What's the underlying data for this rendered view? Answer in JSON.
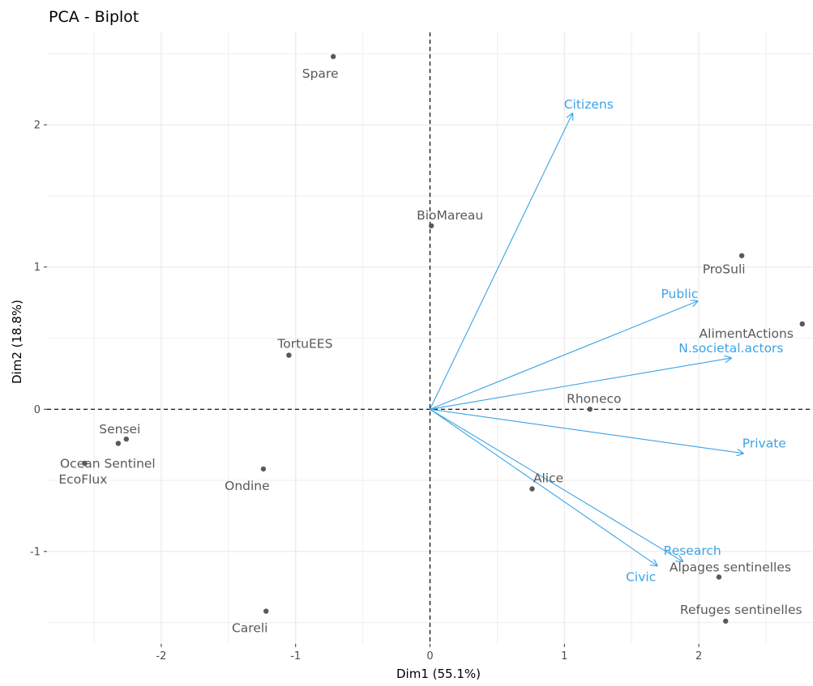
{
  "chart_data": {
    "type": "scatter",
    "title": "PCA - Biplot",
    "xlabel": "Dim1 (55.1%)",
    "ylabel": "Dim2 (18.8%)",
    "xlim": [
      -2.85,
      2.85
    ],
    "ylim": [
      -1.65,
      2.65
    ],
    "x_ticks": [
      -2,
      -1,
      0,
      1,
      2
    ],
    "y_ticks": [
      -1,
      0,
      1,
      2
    ],
    "grid": true,
    "reference_lines": {
      "x": 0,
      "y": 0,
      "style": "dashed"
    },
    "individuals": [
      {
        "name": "Spare",
        "x": -0.72,
        "y": 2.48
      },
      {
        "name": "BioMareau",
        "x": 0.01,
        "y": 1.29
      },
      {
        "name": "ProSuli",
        "x": 2.32,
        "y": 1.08
      },
      {
        "name": "AlimentActions",
        "x": 2.77,
        "y": 0.6
      },
      {
        "name": "TortuEES",
        "x": -1.05,
        "y": 0.38
      },
      {
        "name": "Rhoneco",
        "x": 1.19,
        "y": 0.0
      },
      {
        "name": "Sensei",
        "x": -2.26,
        "y": -0.21
      },
      {
        "name": "Ocean Sentinel",
        "x": -2.32,
        "y": -0.24
      },
      {
        "name": "EcoFlux",
        "x": -2.57,
        "y": -0.38
      },
      {
        "name": "Ondine",
        "x": -1.24,
        "y": -0.42
      },
      {
        "name": "Alice",
        "x": 0.76,
        "y": -0.56
      },
      {
        "name": "Alpages sentinelles",
        "x": 2.15,
        "y": -1.18
      },
      {
        "name": "Careli",
        "x": -1.22,
        "y": -1.42
      },
      {
        "name": "Refuges sentinelles",
        "x": 2.2,
        "y": -1.49
      }
    ],
    "variables": [
      {
        "name": "Citizens",
        "x": 1.06,
        "y": 2.08
      },
      {
        "name": "Public",
        "x": 1.99,
        "y": 0.76
      },
      {
        "name": "N.societal.actors",
        "x": 2.24,
        "y": 0.36
      },
      {
        "name": "Private",
        "x": 2.33,
        "y": -0.31
      },
      {
        "name": "Research",
        "x": 1.88,
        "y": -1.07
      },
      {
        "name": "Civic",
        "x": 1.69,
        "y": -1.1
      }
    ],
    "colors": {
      "individuals": "#595959",
      "variables": "#3ba3e6",
      "grid": "#ebebeb"
    }
  }
}
